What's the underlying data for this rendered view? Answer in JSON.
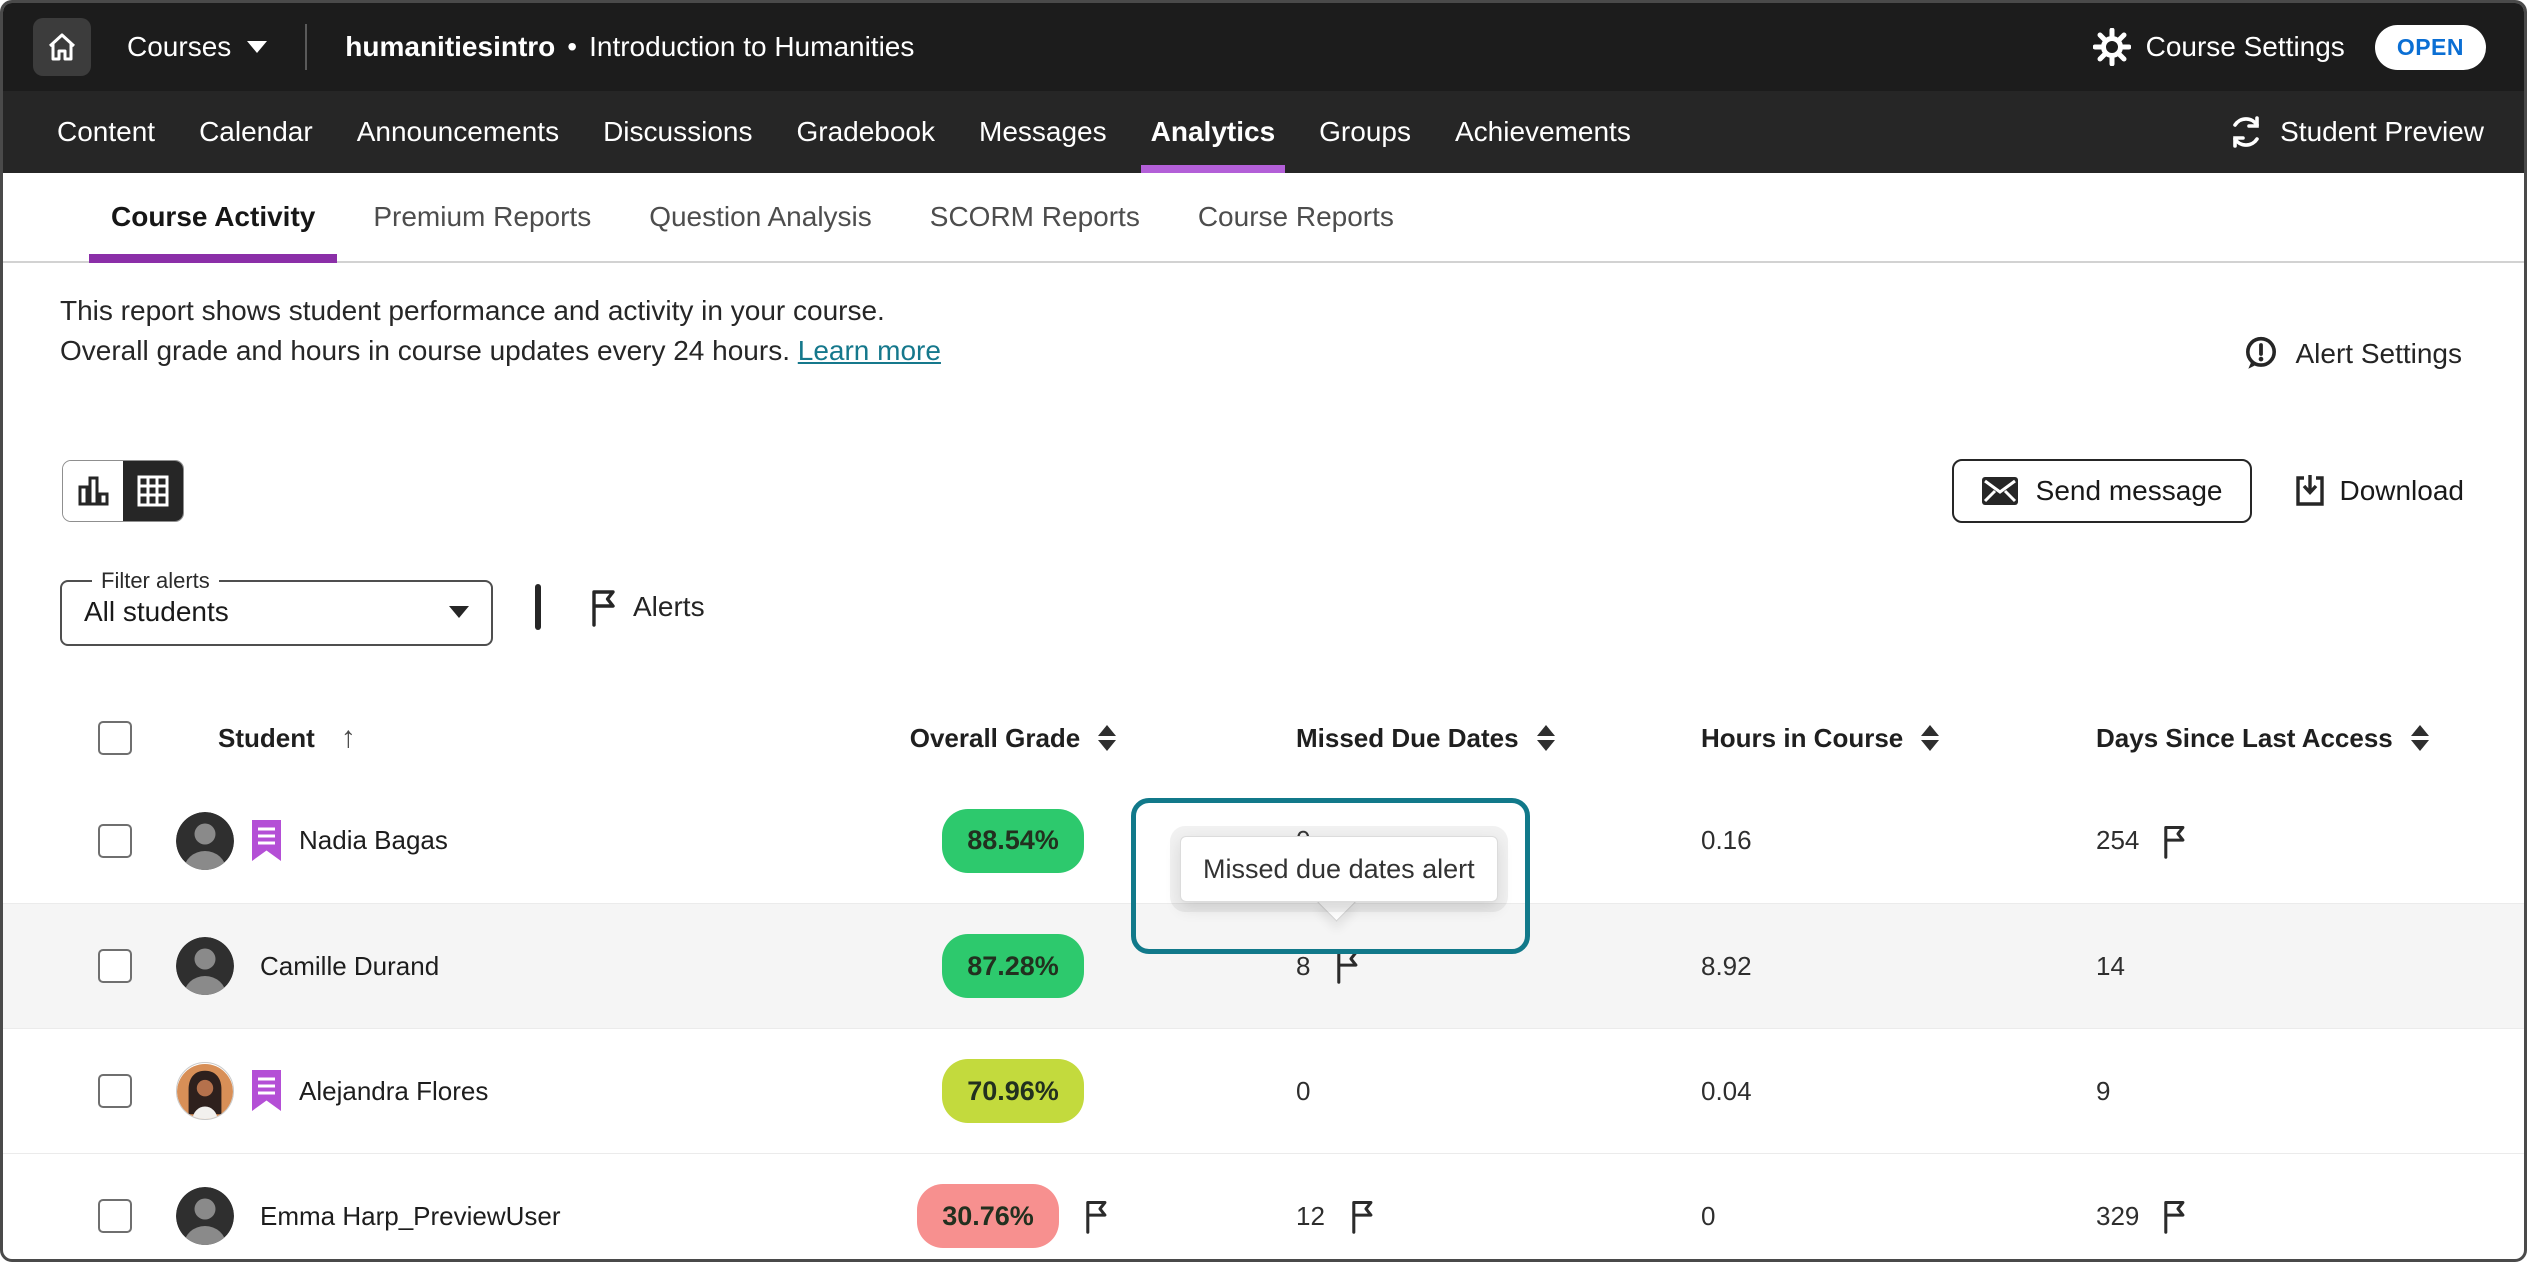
{
  "topbar": {
    "courses_label": "Courses",
    "course_code": "humanitiesintro",
    "separator": "•",
    "course_title": "Introduction to Humanities",
    "settings_label": "Course Settings",
    "open_badge": "OPEN",
    "open_badge_color": "#0b6fd4"
  },
  "nav": {
    "tabs": [
      "Content",
      "Calendar",
      "Announcements",
      "Discussions",
      "Gradebook",
      "Messages",
      "Analytics",
      "Groups",
      "Achievements"
    ],
    "active_tab": "Analytics",
    "active_underline_color": "#b35fd8",
    "student_preview_label": "Student Preview"
  },
  "subnav": {
    "tabs": [
      "Course Activity",
      "Premium Reports",
      "Question Analysis",
      "SCORM Reports",
      "Course Reports"
    ],
    "active_tab": "Course Activity",
    "active_underline_color": "#8b2fa8"
  },
  "report_info": {
    "line1": "This report shows student performance and activity in your course.",
    "line2": "Overall grade and hours in course updates every 24 hours.",
    "learn_more_label": "Learn more",
    "link_color": "#15788c",
    "alert_settings_label": "Alert Settings"
  },
  "toolbar": {
    "chart_view_icon": "bar-chart-icon",
    "table_view_icon": "table-grid-icon",
    "active_view": "table",
    "send_message_label": "Send message",
    "download_label": "Download"
  },
  "filter": {
    "label": "Filter alerts",
    "value": "All students",
    "alerts_label": "Alerts"
  },
  "table": {
    "headers": [
      "Student",
      "Overall Grade",
      "Missed Due Dates",
      "Hours in Course",
      "Days Since Last Access"
    ],
    "student_sort": "asc",
    "rows": [
      {
        "name": "Nadia Bagas",
        "accommodations": true,
        "photo_avatar": false,
        "shaded": false,
        "grade": "88.54%",
        "grade_color": "#2dc96d",
        "grade_flag": false,
        "missed_due_dates": "0",
        "missed_flag": false,
        "hours_in_course": "0.16",
        "days_since_last_access": "254",
        "days_flag": true
      },
      {
        "name": "Camille Durand",
        "accommodations": false,
        "photo_avatar": false,
        "shaded": true,
        "grade": "87.28%",
        "grade_color": "#2dc96d",
        "grade_flag": false,
        "missed_due_dates": "8",
        "missed_flag": true,
        "hours_in_course": "8.92",
        "days_since_last_access": "14",
        "days_flag": false
      },
      {
        "name": "Alejandra Flores",
        "accommodations": true,
        "photo_avatar": true,
        "shaded": false,
        "grade": "70.96%",
        "grade_color": "#c3da3d",
        "grade_flag": false,
        "missed_due_dates": "0",
        "missed_flag": false,
        "hours_in_course": "0.04",
        "days_since_last_access": "9",
        "days_flag": false
      },
      {
        "name": "Emma Harp_PreviewUser",
        "accommodations": false,
        "photo_avatar": false,
        "shaded": false,
        "grade": "30.76%",
        "grade_color": "#f7908f",
        "grade_flag": true,
        "missed_due_dates": "12",
        "missed_flag": true,
        "hours_in_course": "0",
        "days_since_last_access": "329",
        "days_flag": true
      }
    ]
  },
  "tooltip": {
    "text": "Missed due dates alert",
    "ring_color": "#11798a"
  },
  "icons": {
    "home": "house-icon",
    "gear": "gear-icon",
    "refresh": "student-preview-refresh-icon",
    "alert": "alert-bubble-icon",
    "envelope": "envelope-icon",
    "download": "download-tray-icon",
    "flag": "alert-flag-icon",
    "bookmark": "accommodations-icon",
    "caret": "chevron-down-icon"
  }
}
